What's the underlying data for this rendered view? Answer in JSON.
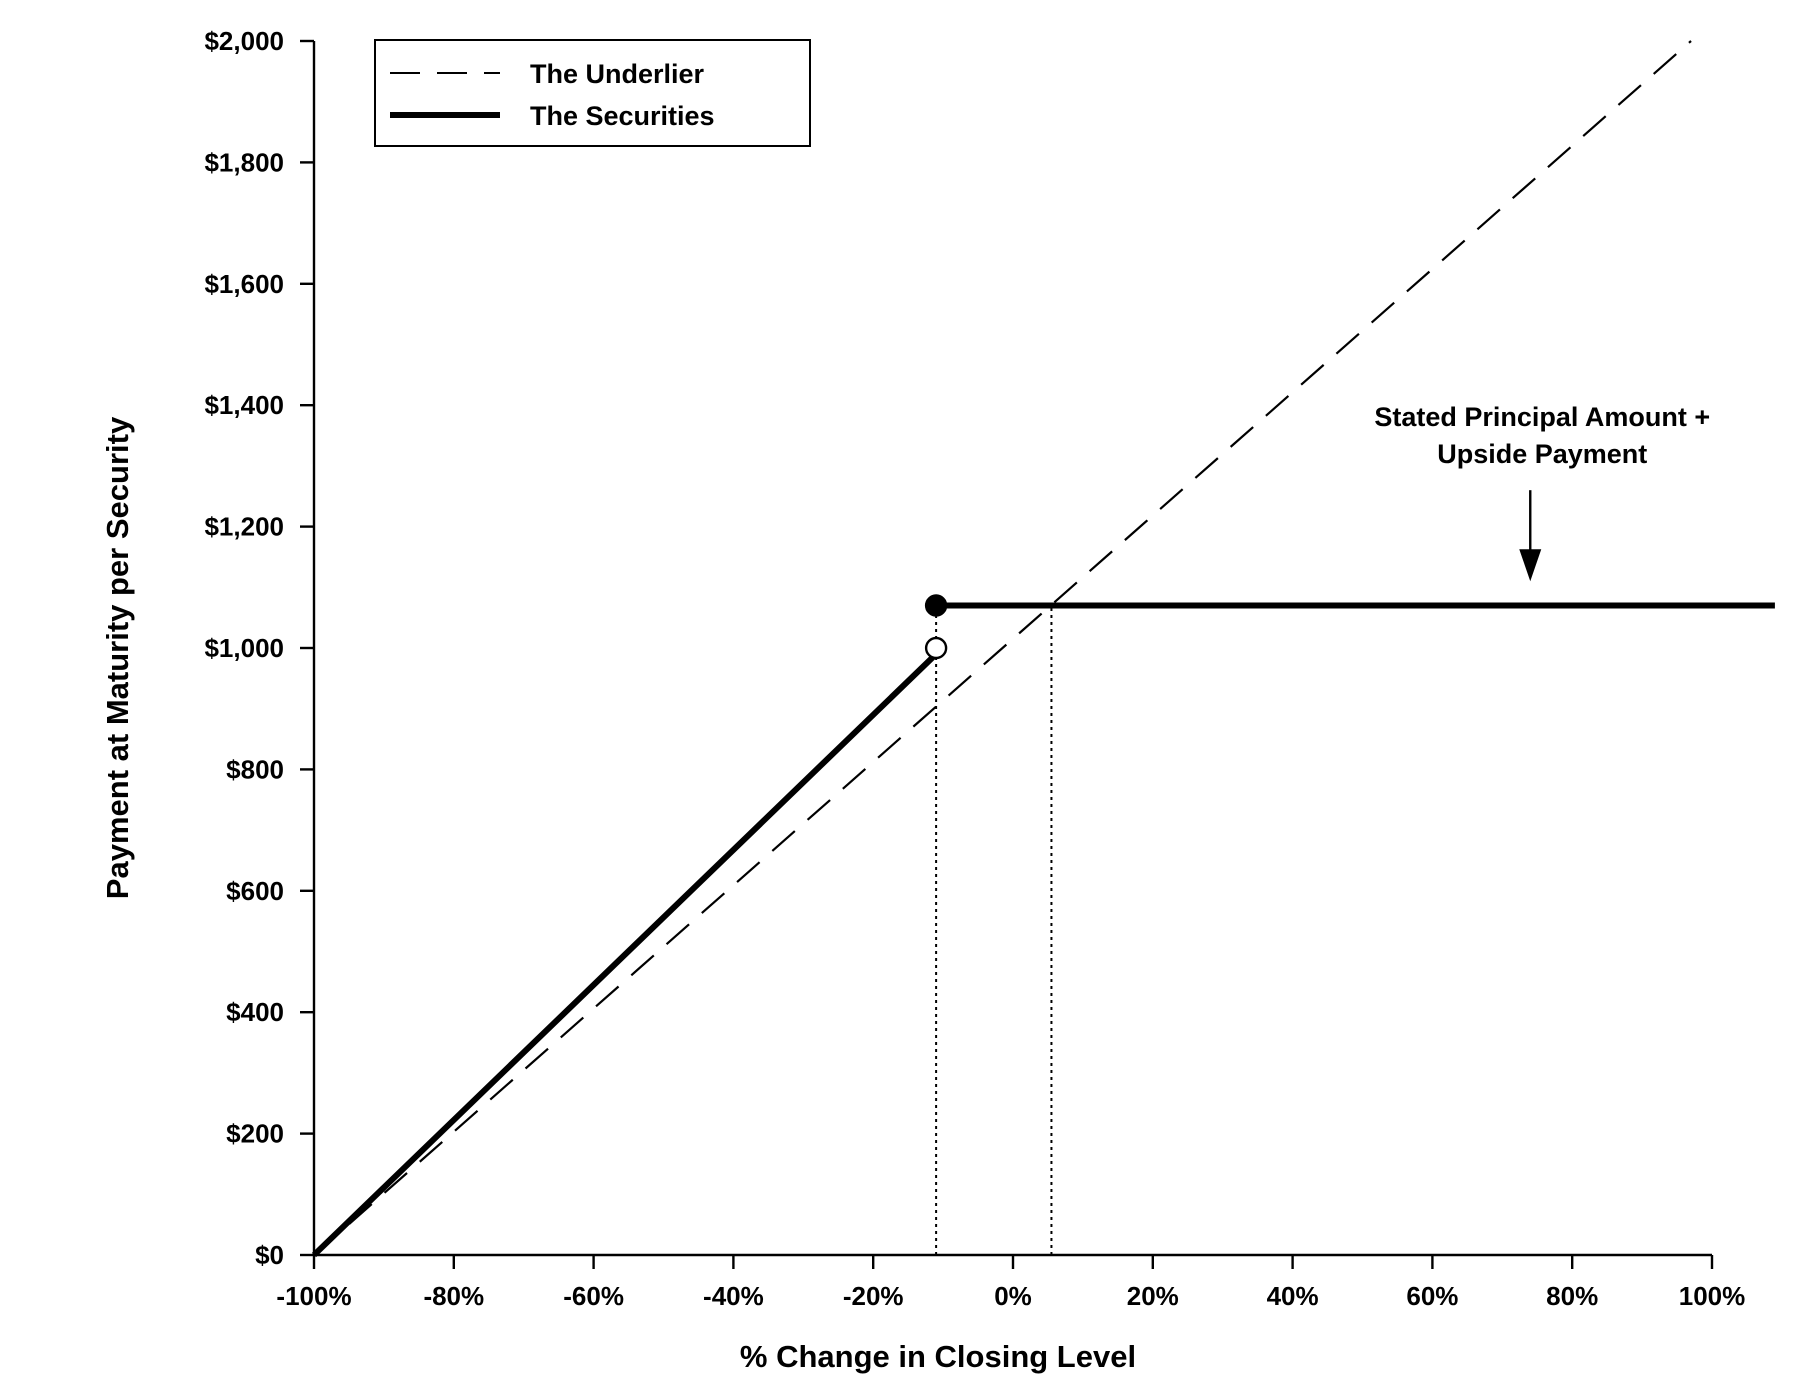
{
  "chart_data": {
    "type": "line",
    "xlabel": "% Change in Closing Level",
    "ylabel": "Payment at Maturity per Security",
    "xlim": [
      -100,
      100
    ],
    "ylim": [
      0,
      2000
    ],
    "x_ticks": [
      -100,
      -80,
      -60,
      -40,
      -20,
      0,
      20,
      40,
      60,
      80,
      100
    ],
    "x_tick_labels": [
      "-100%",
      "-80%",
      "-60%",
      "-40%",
      "-20%",
      "0%",
      "20%",
      "40%",
      "60%",
      "80%",
      "100%"
    ],
    "y_ticks": [
      0,
      200,
      400,
      600,
      800,
      1000,
      1200,
      1400,
      1600,
      1800,
      2000
    ],
    "y_tick_labels": [
      "$0",
      "$200",
      "$400",
      "$600",
      "$800",
      "$1,000",
      "$1,200",
      "$1,400",
      "$1,600",
      "$1,800",
      "$2,000"
    ],
    "legend": {
      "position": "top-left",
      "entries": [
        "The Underlier",
        "The Securities"
      ]
    },
    "series": [
      {
        "name": "The Underlier",
        "style": "dashed",
        "color": "#000000",
        "points": [
          [
            -100,
            0
          ],
          [
            97,
            2000
          ]
        ]
      },
      {
        "name": "The Securities",
        "style": "solid-thick",
        "color": "#000000",
        "segments": [
          [
            [
              -100,
              0
            ],
            [
              -11,
              990
            ]
          ],
          [
            [
              -11,
              1070
            ],
            [
              109,
              1070
            ]
          ]
        ]
      }
    ],
    "markers": [
      {
        "x": -11,
        "y": 1070,
        "fill": "filled"
      },
      {
        "x": -11,
        "y": 1000,
        "fill": "open"
      }
    ],
    "reference_lines": [
      {
        "x": -11,
        "y_from": 0,
        "y_to": 1070,
        "style": "dotted"
      },
      {
        "x": 5.5,
        "y_from": 0,
        "y_to": 1070,
        "style": "dotted"
      }
    ],
    "annotations": [
      {
        "lines": [
          "Stated Principal Amount +",
          "Upside Payment"
        ],
        "arrow_x": 74,
        "arrow_from_y": 1260,
        "arrow_to_y": 1110
      }
    ]
  }
}
